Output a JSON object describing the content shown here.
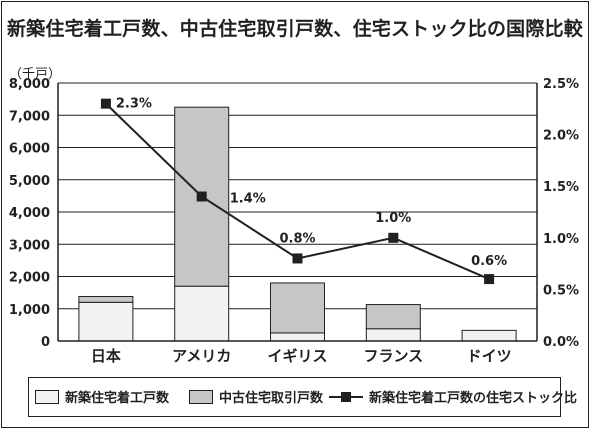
{
  "title": "新築住宅着工戸数、中古住宅取引戸数、住宅ストック比の国際比較",
  "unit_label": "（千戸）",
  "legend": {
    "new": "新築住宅着工戸数",
    "used": "中古住宅取引戸数",
    "ratio": "新築住宅着工戸数の住宅ストック比"
  },
  "colors": {
    "new_fill": "#f2f2f2",
    "used_fill": "#c6c6c6",
    "line": "#231f20",
    "axis": "#231f20"
  },
  "chart_data": {
    "type": "bar",
    "stacked": true,
    "categories": [
      "日本",
      "アメリカ",
      "イギリス",
      "フランス",
      "ドイツ"
    ],
    "series": [
      {
        "name": "新築住宅着工戸数",
        "type": "bar",
        "axis": "left",
        "values": [
          1200,
          1700,
          250,
          380,
          330
        ]
      },
      {
        "name": "中古住宅取引戸数",
        "type": "bar",
        "axis": "left",
        "values": [
          180,
          5550,
          1550,
          750,
          0
        ]
      },
      {
        "name": "新築住宅着工戸数の住宅ストック比",
        "type": "line",
        "axis": "right",
        "values": [
          2.3,
          1.4,
          0.8,
          1.0,
          0.6
        ],
        "labels": [
          "2.3%",
          "1.4%",
          "0.8%",
          "1.0%",
          "0.6%"
        ]
      }
    ],
    "ylim": [
      0,
      8000
    ],
    "y_ticks": [
      "0",
      "1,000",
      "2,000",
      "3,000",
      "4,000",
      "5,000",
      "6,000",
      "7,000",
      "8,000"
    ],
    "y2lim": [
      0,
      2.5
    ],
    "y2_ticks": [
      "0.0%",
      "0.5%",
      "1.0%",
      "1.5%",
      "2.0%",
      "2.5%"
    ],
    "grid": true,
    "legend_position": "bottom"
  }
}
